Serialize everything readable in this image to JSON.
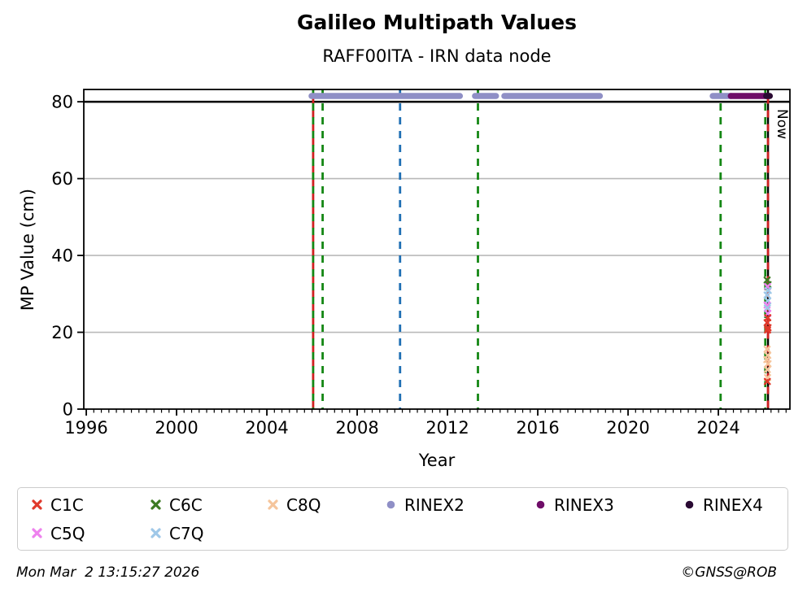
{
  "chart_data": {
    "type": "scatter",
    "title": "Galileo Multipath Values",
    "subtitle": "RAFF00ITA - IRN data node",
    "xlabel": "Year",
    "ylabel": "MP Value (cm)",
    "xlim": [
      1995.89,
      2027.17
    ],
    "ylim": [
      0,
      83.2
    ],
    "xticks": [
      1996,
      2000,
      2004,
      2008,
      2012,
      2016,
      2020,
      2024
    ],
    "yticks": [
      0,
      20,
      40,
      60,
      80
    ],
    "grid_values": [
      20,
      40,
      60
    ],
    "grid_on": true,
    "legend_position": "bottom",
    "hline": {
      "value": 80
    },
    "rinex_value": 81.5,
    "rinex_runs": {
      "RINEX2": [
        [
          2005.98,
          2012.55
        ],
        [
          2013.22,
          2014.15
        ],
        [
          2014.52,
          2018.75
        ],
        [
          2023.75,
          2024.55
        ]
      ],
      "RINEX3": [
        [
          2024.55,
          2026.25
        ]
      ],
      "RINEX4": [
        [
          2026.12,
          2026.28
        ]
      ]
    },
    "vlines": [
      {
        "year": 2006.05,
        "color": "event_red",
        "style": "dashed",
        "dash_offset": 8.5
      },
      {
        "year": 2006.05,
        "color": "event_green",
        "style": "dashed"
      },
      {
        "year": 2006.47,
        "color": "event_green",
        "style": "dashed"
      },
      {
        "year": 2009.9,
        "color": "event_blue",
        "style": "dashed"
      },
      {
        "year": 2013.35,
        "color": "event_green",
        "style": "dashed"
      },
      {
        "year": 2024.1,
        "color": "event_green",
        "style": "dashed"
      },
      {
        "year": 2026.08,
        "color": "event_green",
        "style": "dashed"
      },
      {
        "year": 2026.2,
        "color": "now",
        "style": "solid",
        "width": 2.4
      },
      {
        "year": 2026.2,
        "color": "event_red",
        "style": "dashed",
        "dash_offset": 8.5
      }
    ],
    "now_label": "Now",
    "scatter": [
      {
        "signal": "C6C",
        "year": 2026.16,
        "value": 33.6
      },
      {
        "signal": "C6C",
        "year": 2026.2,
        "value": 32.4
      },
      {
        "signal": "C5Q",
        "year": 2026.18,
        "value": 31.9
      },
      {
        "signal": "C7Q",
        "year": 2026.21,
        "value": 30.9
      },
      {
        "signal": "C7Q",
        "year": 2026.16,
        "value": 29.7
      },
      {
        "signal": "C7Q",
        "year": 2026.19,
        "value": 28.2
      },
      {
        "signal": "C5Q",
        "year": 2026.16,
        "value": 27.1
      },
      {
        "signal": "C7Q",
        "year": 2026.17,
        "value": 26.3
      },
      {
        "signal": "C5Q",
        "year": 2026.19,
        "value": 24.9
      },
      {
        "signal": "C1C",
        "year": 2026.19,
        "value": 23.8
      },
      {
        "signal": "C1C",
        "year": 2026.16,
        "value": 22.5
      },
      {
        "signal": "C1C",
        "year": 2026.2,
        "value": 21.2
      },
      {
        "signal": "C1C",
        "year": 2026.18,
        "value": 20.6
      },
      {
        "signal": "C8Q",
        "year": 2026.16,
        "value": 15.6
      },
      {
        "signal": "C8Q",
        "year": 2026.19,
        "value": 14.0
      },
      {
        "signal": "C8Q",
        "year": 2026.15,
        "value": 12.9
      },
      {
        "signal": "C8Q",
        "year": 2026.2,
        "value": 11.8
      },
      {
        "signal": "C8Q",
        "year": 2026.17,
        "value": 10.3
      },
      {
        "signal": "C8Q",
        "year": 2026.18,
        "value": 8.2
      },
      {
        "signal": "C1C",
        "year": 2026.17,
        "value": 7.2
      }
    ]
  },
  "colors": {
    "C1C": "#e0392b",
    "C6C": "#3c7a23",
    "C8Q": "#f5c59c",
    "C5Q": "#ee82ee",
    "C7Q": "#9fc8e8",
    "RINEX2": "#8f8fc6",
    "RINEX3": "#6f0d68",
    "RINEX4": "#2a0a33",
    "event_green": "#148714",
    "event_red": "#cf2020",
    "event_blue": "#1f6fb4",
    "now": "#000000",
    "grid": "#b9b9b9",
    "axis": "#000000"
  },
  "legend": {
    "entries": [
      {
        "label": "C1C",
        "marker": "x",
        "color_key": "C1C",
        "row": 1
      },
      {
        "label": "C6C",
        "marker": "x",
        "color_key": "C6C",
        "row": 1
      },
      {
        "label": "C8Q",
        "marker": "x",
        "color_key": "C8Q",
        "row": 1
      },
      {
        "label": "RINEX2",
        "marker": "circle",
        "color_key": "RINEX2",
        "row": 1
      },
      {
        "label": "RINEX3",
        "marker": "circle",
        "color_key": "RINEX3",
        "row": 1
      },
      {
        "label": "RINEX4",
        "marker": "circle",
        "color_key": "RINEX4",
        "row": 1
      },
      {
        "label": "C5Q",
        "marker": "x",
        "color_key": "C5Q",
        "row": 2
      },
      {
        "label": "C7Q",
        "marker": "x",
        "color_key": "C7Q",
        "row": 2
      }
    ]
  },
  "footer": {
    "timestamp": "Mon Mar  2 13:15:27 2026",
    "copyright": "©GNSS@ROB"
  }
}
